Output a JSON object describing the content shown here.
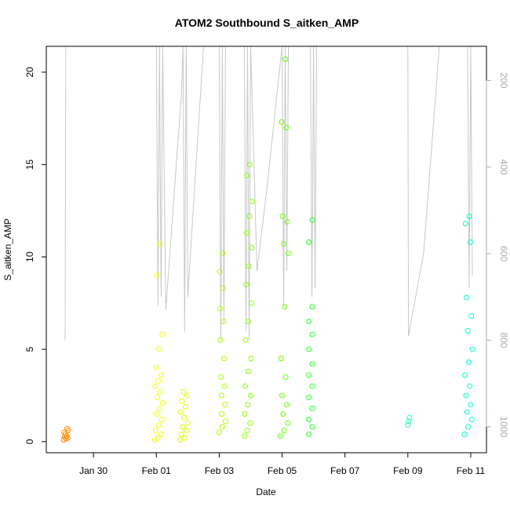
{
  "chart_data": {
    "type": "scatter",
    "title": "ATOM2 Southbound S_aitken_AMP",
    "xlabel": "Date",
    "ylabel": "S_aitken_AMP",
    "x_ticks": [
      "Jan 30",
      "Feb 01",
      "Feb 03",
      "Feb 05",
      "Feb 07",
      "Feb 09",
      "Feb 11"
    ],
    "x_tick_days": [
      30,
      32,
      34,
      36,
      38,
      40,
      42
    ],
    "xlim_days": [
      28.5,
      42.5
    ],
    "ylim": [
      -0.6,
      21.4
    ],
    "y_ticks": [
      0,
      5,
      10,
      15,
      20
    ],
    "right_axis": {
      "ticks": [
        200,
        400,
        600,
        800,
        1000
      ],
      "ylim": [
        1060,
        121
      ],
      "color": "#aaaaaa"
    },
    "grid": false,
    "legend": "none",
    "colors": {
      "altitude_line": "#c8c8c8",
      "axis": "#000000",
      "color_scale": [
        "#ff8000",
        "#ffff00",
        "#80ff00",
        "#00ff00",
        "#00ffbf"
      ]
    },
    "series": [
      {
        "x_range": [
          29.05,
          29.2
        ],
        "y": [
          0.1,
          0.2,
          0.3,
          0.4,
          0.5,
          0.6,
          0.7,
          0.15,
          0.25
        ],
        "color": "#ff8800"
      },
      {
        "x_range": [
          31.95,
          32.2
        ],
        "y": [
          0.1,
          0.2,
          0.4,
          0.6,
          0.9,
          1.2,
          1.5,
          1.8,
          2.1,
          2.4,
          2.7,
          3.0,
          3.3,
          3.6,
          4.0,
          5.0,
          5.8,
          9.0,
          10.7
        ],
        "color": "#f5ff00"
      },
      {
        "x_range": [
          32.75,
          33.0
        ],
        "y": [
          0.1,
          0.2,
          0.4,
          0.6,
          0.8,
          1.0,
          1.3,
          1.6,
          1.9,
          2.2,
          2.5,
          2.7
        ],
        "color": "#d9ff00"
      },
      {
        "x_range": [
          34.0,
          34.2
        ],
        "y": [
          0.5,
          0.8,
          1.1,
          1.5,
          2.0,
          2.5,
          3.0,
          3.5,
          4.5,
          5.5,
          6.5,
          7.2,
          8.3,
          9.2,
          10.2
        ],
        "color": "#aaff00"
      },
      {
        "x_range": [
          34.8,
          35.05
        ],
        "y": [
          0.3,
          0.6,
          1.0,
          1.5,
          2.0,
          2.5,
          3.0,
          3.8,
          4.5,
          5.5,
          6.5,
          7.5,
          8.5,
          9.5,
          10.5,
          11.3,
          12.2,
          13.0,
          14.4,
          15.0
        ],
        "color": "#88ff00"
      },
      {
        "x_range": [
          35.95,
          36.2
        ],
        "y": [
          0.3,
          0.6,
          1.0,
          1.5,
          2.0,
          2.5,
          3.5,
          4.5,
          7.3,
          10.2,
          10.7,
          11.9,
          12.2,
          17.0,
          17.3,
          20.7
        ],
        "color": "#66ff00"
      },
      {
        "x_range": [
          36.85,
          37.05
        ],
        "y": [
          0.4,
          0.8,
          1.2,
          1.8,
          2.4,
          3.0,
          3.6,
          4.2,
          5.0,
          5.8,
          6.5,
          7.3,
          10.8,
          12.0
        ],
        "color": "#22ff22"
      },
      {
        "x_range": [
          40.0,
          40.05
        ],
        "y": [
          0.9,
          1.1,
          1.3
        ],
        "color": "#22ffaa"
      },
      {
        "x_range": [
          41.8,
          42.05
        ],
        "y": [
          0.4,
          0.8,
          1.2,
          1.6,
          2.0,
          2.5,
          3.0,
          3.6,
          4.3,
          5.0,
          6.0,
          6.8,
          7.8,
          10.8,
          11.8,
          12.2
        ],
        "color": "#00ffc8"
      }
    ],
    "altitude_profile": {
      "axis": "right",
      "x_days": [
        29.1,
        29.12,
        29.14,
        29.2,
        29.3,
        29.4,
        29.5,
        29.6,
        29.7,
        29.8,
        29.9,
        30.0,
        30.2,
        30.5,
        31.0,
        31.5,
        32.0,
        32.05,
        32.1,
        32.15,
        32.2,
        32.3,
        32.8,
        32.85,
        32.9,
        32.95,
        33.0,
        33.5,
        33.8,
        34.0,
        34.05,
        34.1,
        34.15,
        34.2,
        34.4,
        34.6,
        34.8,
        34.85,
        34.9,
        34.95,
        35.0,
        35.2,
        35.5,
        36.0,
        36.05,
        36.1,
        36.15,
        36.2,
        36.5,
        36.9,
        36.95,
        37.0,
        37.05,
        37.1,
        38.0,
        39.0,
        40.0,
        40.02,
        40.5,
        41.0,
        41.5,
        41.9,
        41.95,
        42.0,
        42.05
      ],
      "pressure": [
        800,
        121,
        121,
        121,
        121,
        121,
        121,
        121,
        121,
        121,
        121,
        121,
        121,
        121,
        121,
        121,
        121,
        720,
        121,
        700,
        121,
        730,
        230,
        121,
        780,
        121,
        700,
        121,
        121,
        121,
        800,
        121,
        760,
        121,
        121,
        121,
        121,
        780,
        121,
        800,
        121,
        640,
        460,
        121,
        720,
        121,
        640,
        121,
        121,
        121,
        700,
        121,
        680,
        121,
        121,
        121,
        121,
        790,
        600,
        121,
        121,
        121,
        680,
        121,
        650
      ]
    }
  }
}
